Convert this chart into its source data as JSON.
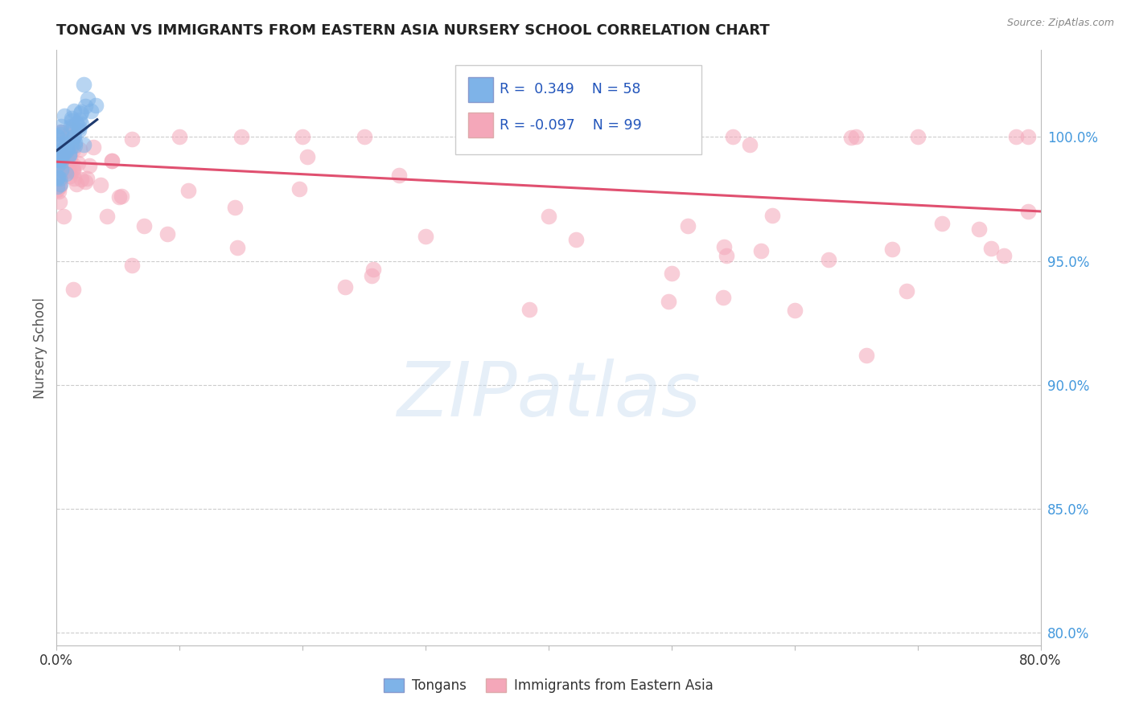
{
  "title": "TONGAN VS IMMIGRANTS FROM EASTERN ASIA NURSERY SCHOOL CORRELATION CHART",
  "source": "Source: ZipAtlas.com",
  "ylabel": "Nursery School",
  "x_min": 0.0,
  "x_max": 0.8,
  "y_min": 0.795,
  "y_max": 1.035,
  "blue_R": 0.349,
  "blue_N": 58,
  "pink_R": -0.097,
  "pink_N": 99,
  "blue_color": "#7EB3E8",
  "pink_color": "#F4A7B9",
  "blue_line_color": "#1E3A6E",
  "pink_line_color": "#E05070",
  "legend_label_blue": "Tongans",
  "legend_label_pink": "Immigrants from Eastern Asia",
  "watermark_text": "ZIPatlas",
  "background_color": "#FFFFFF",
  "grid_color": "#CCCCCC",
  "right_tick_color": "#4499DD",
  "title_color": "#222222",
  "source_color": "#888888"
}
